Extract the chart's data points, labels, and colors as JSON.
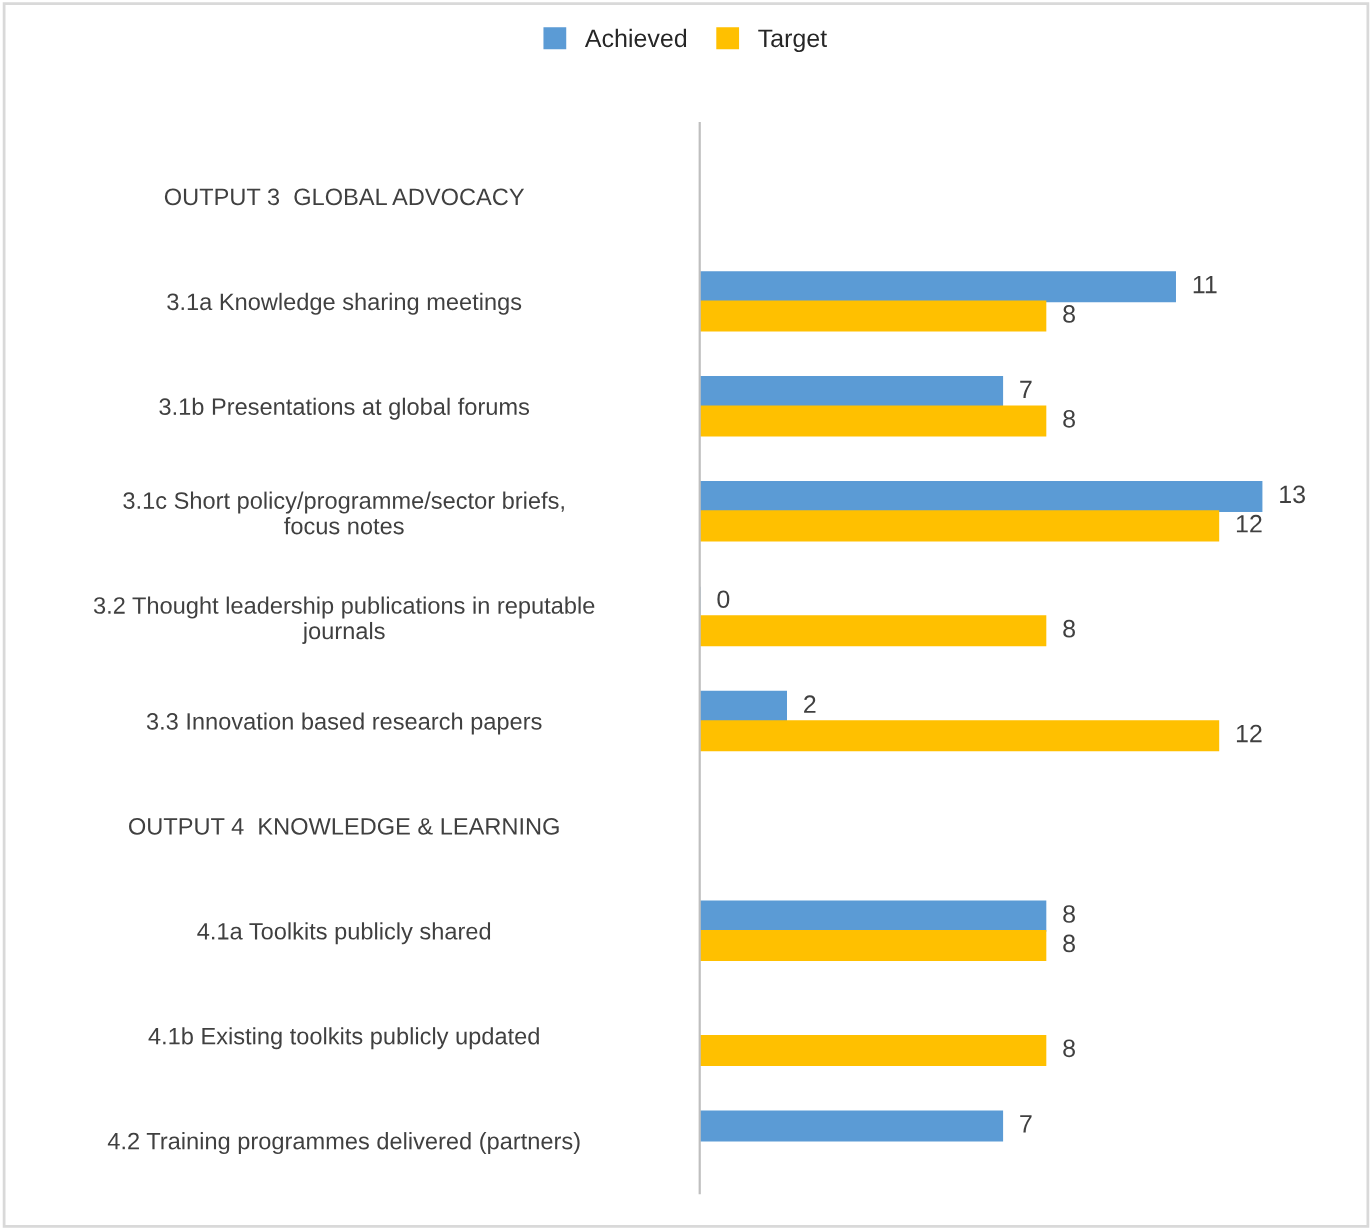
{
  "chart_data": {
    "type": "bar",
    "orientation": "horizontal",
    "data_labels": true,
    "legend": "top",
    "grid": false,
    "tick_labels": "y",
    "categories": [
      "OUTPUT 3  GLOBAL ADVOCACY",
      "3.1a Knowledge sharing meetings",
      "3.1b Presentations at global forums",
      "3.1c Short policy/programme/sector briefs,\nfocus notes",
      "3.2 Thought leadership publications in reputable\njournals",
      "3.3 Innovation based research papers",
      "OUTPUT 4  KNOWLEDGE & LEARNING",
      "4.1a Toolkits publicly shared",
      "4.1b Existing toolkits publicly updated",
      "4.2 Training programmes delivered (partners)"
    ],
    "series": [
      {
        "name": "Achieved",
        "color": "#5b9bd5",
        "values": [
          null,
          11,
          7,
          13,
          0,
          2,
          null,
          8,
          null,
          7
        ]
      },
      {
        "name": "Target",
        "color": "#ffc000",
        "values": [
          null,
          8,
          8,
          12,
          8,
          12,
          null,
          8,
          8,
          null
        ]
      }
    ]
  }
}
